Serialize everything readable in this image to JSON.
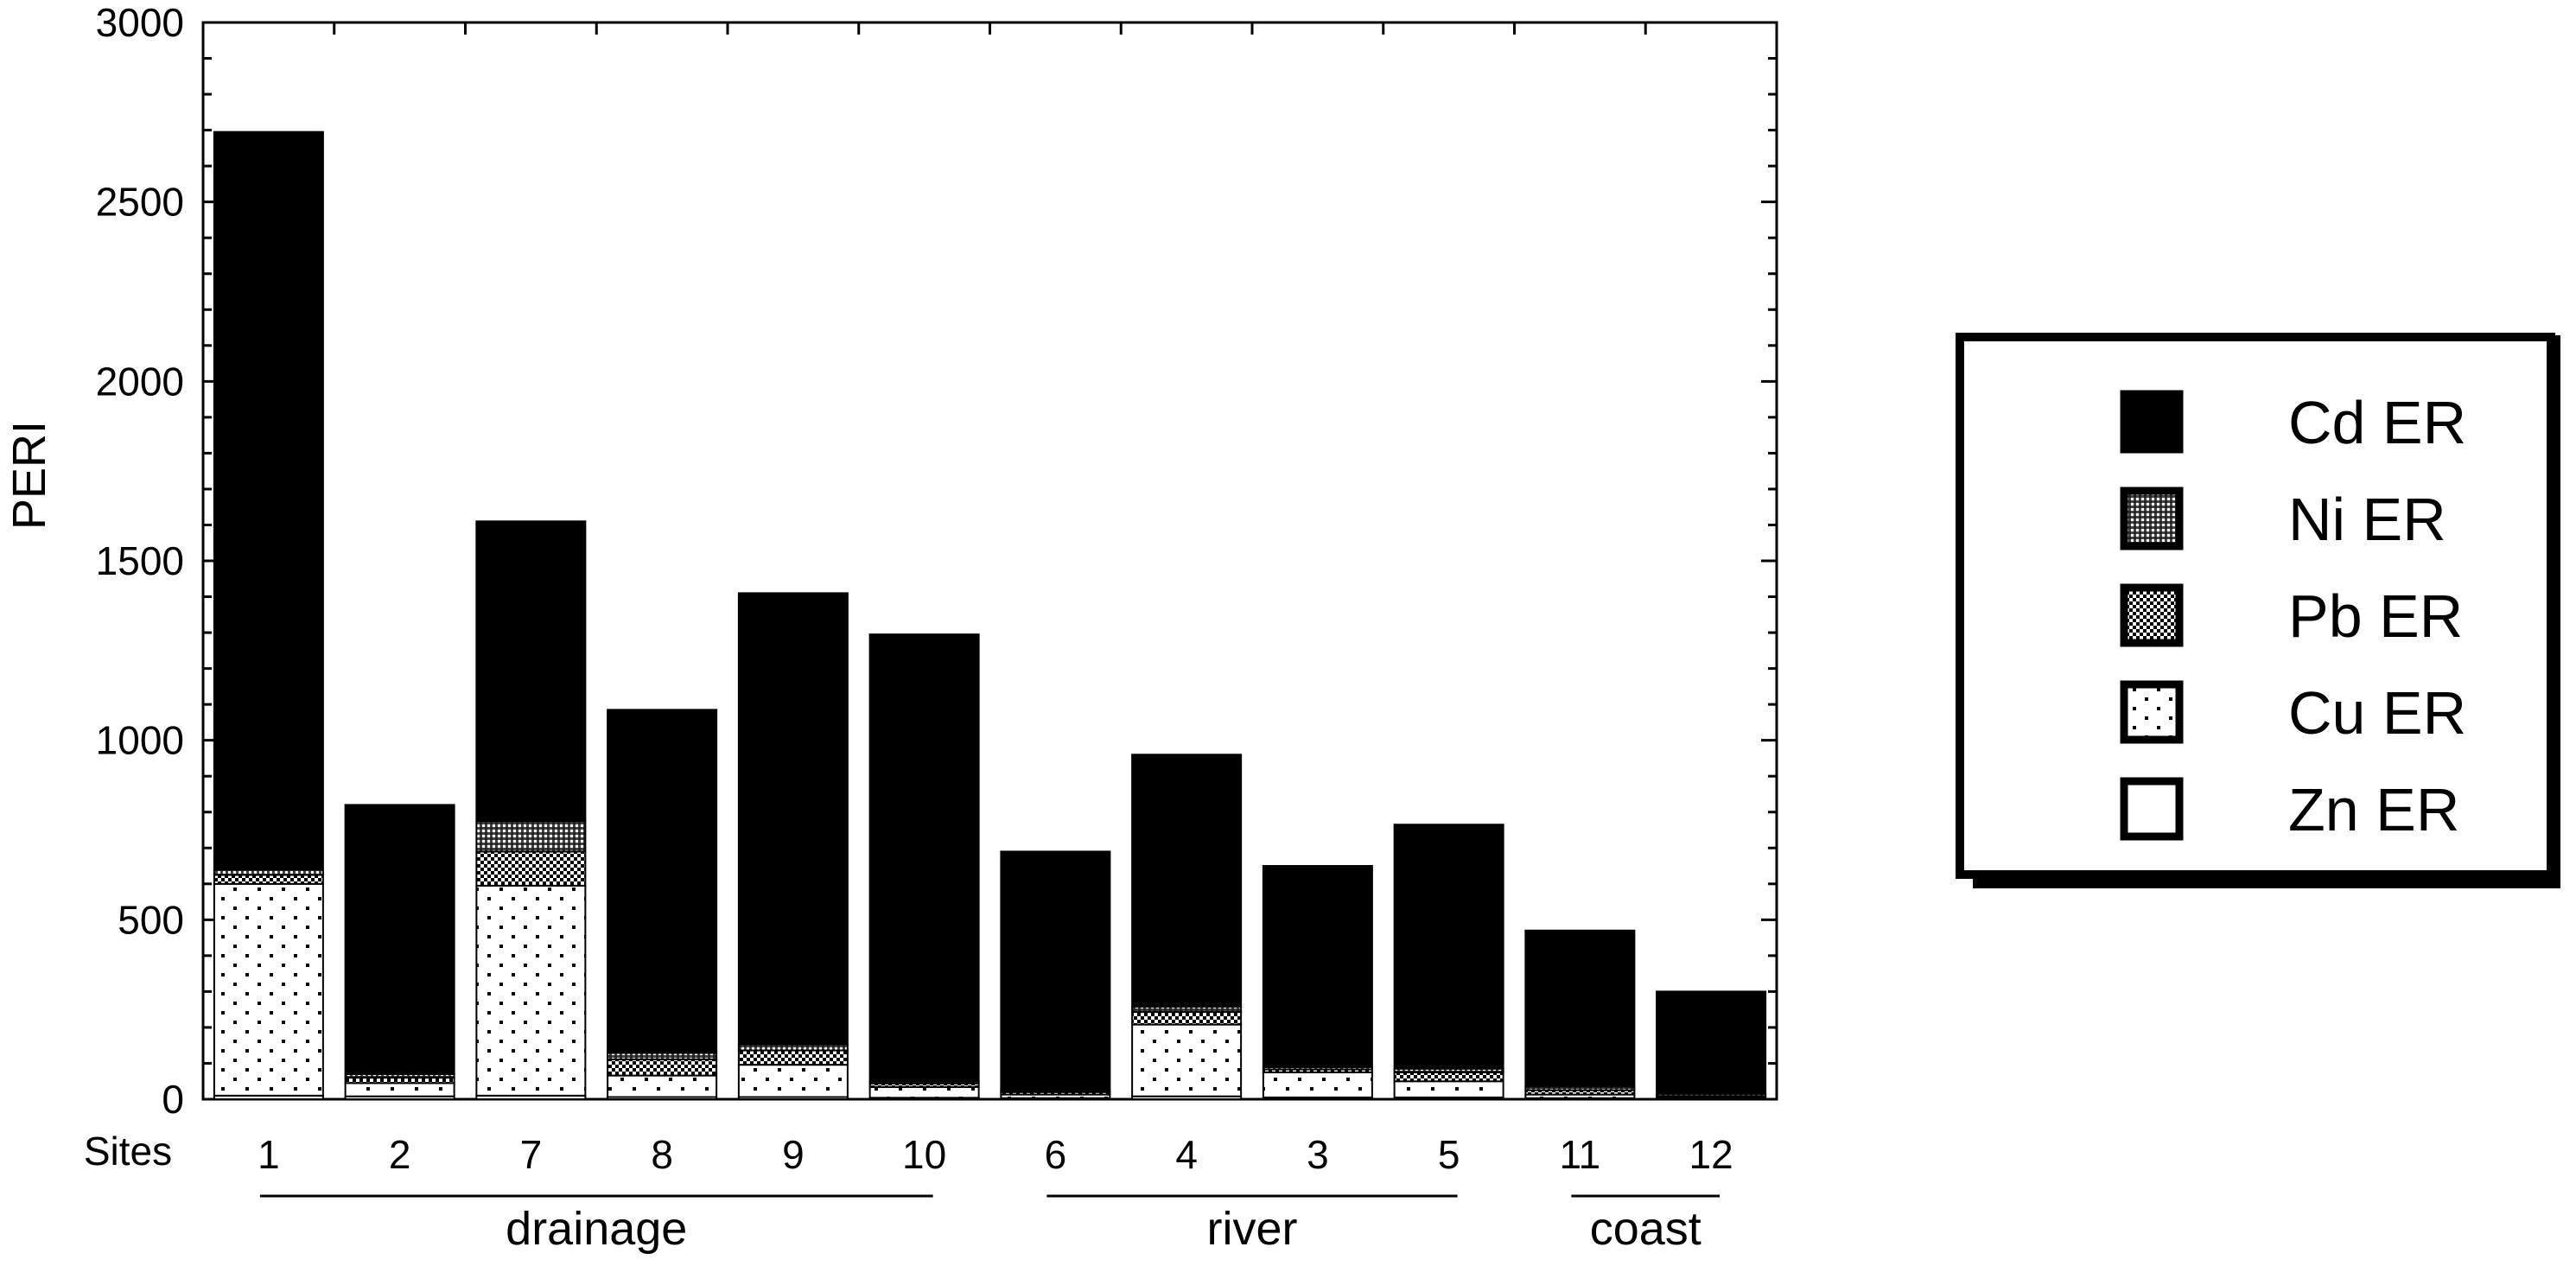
{
  "chart_data": {
    "type": "bar",
    "stacked": true,
    "ylabel": "PERI",
    "xlabel": "Sites",
    "ylim": [
      0,
      3000
    ],
    "yticks": [
      0,
      500,
      1000,
      1500,
      2000,
      2500,
      3000
    ],
    "categories": [
      "1",
      "2",
      "7",
      "8",
      "9",
      "10",
      "6",
      "4",
      "3",
      "5",
      "11",
      "12"
    ],
    "series": [
      {
        "name": "Zn ER",
        "pattern": "white",
        "values": [
          10,
          8,
          10,
          6,
          6,
          4,
          3,
          8,
          5,
          5,
          3,
          2
        ]
      },
      {
        "name": "Cu ER",
        "pattern": "sparse-dots",
        "values": [
          590,
          37,
          585,
          60,
          90,
          30,
          10,
          200,
          70,
          45,
          10,
          3
        ]
      },
      {
        "name": "Pb ER",
        "pattern": "dense-dots",
        "values": [
          25,
          15,
          95,
          45,
          40,
          10,
          7,
          35,
          8,
          25,
          12,
          4
        ]
      },
      {
        "name": "Ni ER",
        "pattern": "crosshatch",
        "values": [
          15,
          10,
          85,
          18,
          17,
          6,
          5,
          15,
          7,
          10,
          10,
          6
        ]
      },
      {
        "name": "Cd ER",
        "pattern": "black",
        "values": [
          2055,
          750,
          835,
          956,
          1257,
          1245,
          665,
          702,
          560,
          680,
          435,
          285
        ]
      }
    ],
    "groups": [
      {
        "label": "drainage",
        "from": 0,
        "to": 5
      },
      {
        "label": "river",
        "from": 6,
        "to": 9
      },
      {
        "label": "coast",
        "from": 10,
        "to": 11
      }
    ],
    "legend": {
      "placement": "right",
      "order": [
        "Cd ER",
        "Ni ER",
        "Pb ER",
        "Cu ER",
        "Zn ER"
      ]
    },
    "grid": false
  }
}
